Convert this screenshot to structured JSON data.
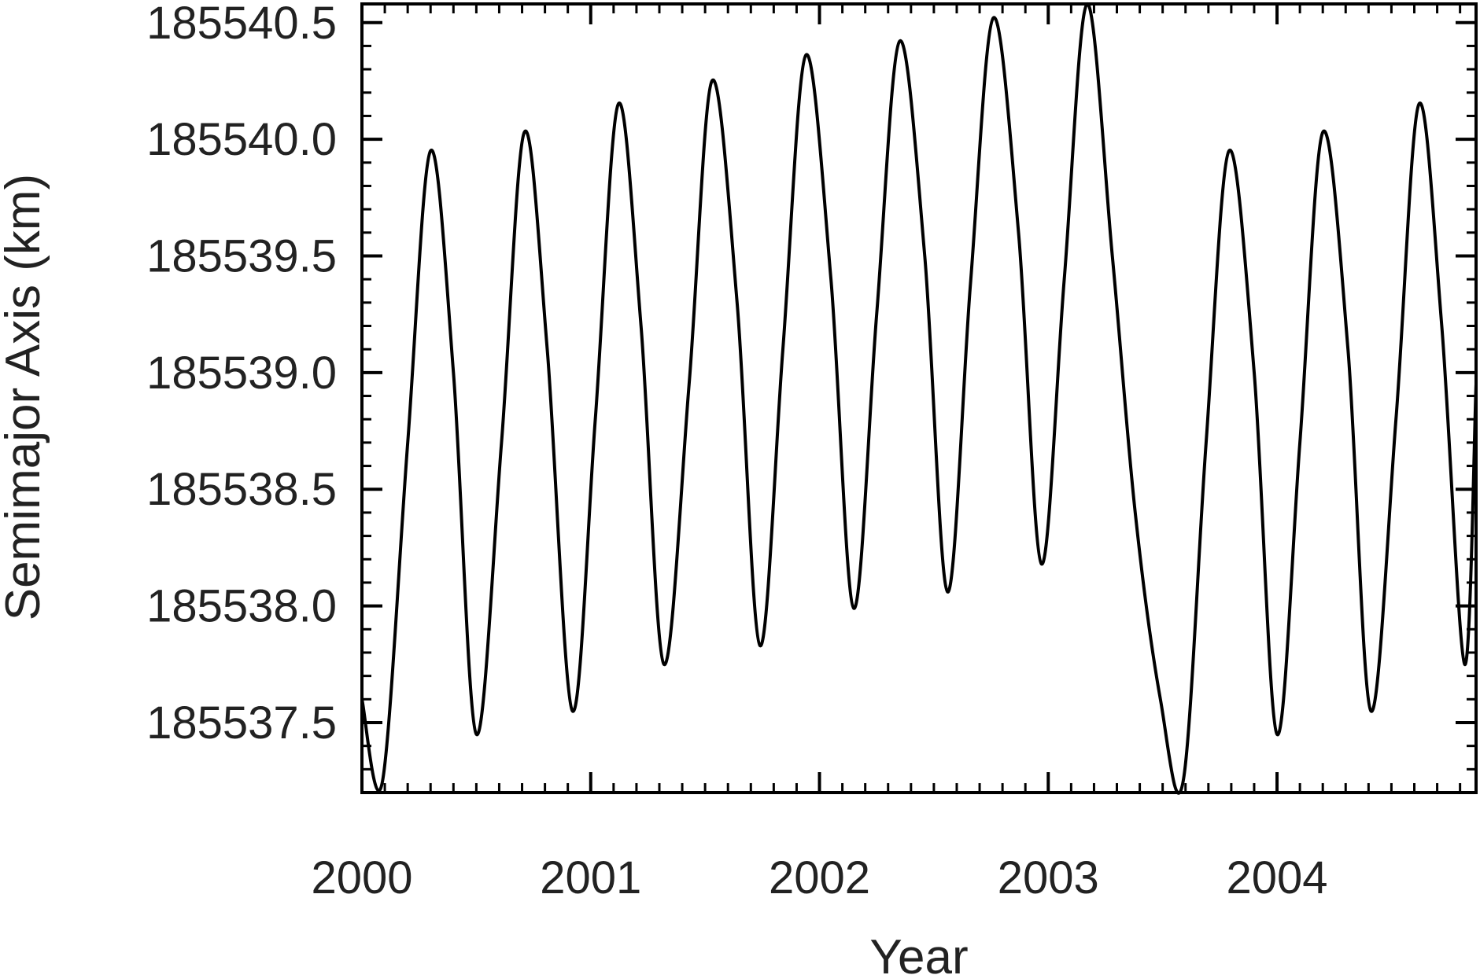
{
  "chart_data": {
    "type": "line",
    "title": "",
    "xlabel": "Year",
    "ylabel": "Semimajor Axis (km)",
    "xlim": [
      2000.0,
      2004.87
    ],
    "ylim": [
      185537.2,
      185540.58
    ],
    "x_ticks": [
      2000,
      2001,
      2002,
      2003,
      2004
    ],
    "x_tick_labels": [
      "2000",
      "2001",
      "2002",
      "2003",
      "2004"
    ],
    "y_ticks": [
      185537.5,
      185538.0,
      185538.5,
      185539.0,
      185539.5,
      185540.0,
      185540.5
    ],
    "y_tick_labels": [
      "185537.5",
      "185538.0",
      "185538.5",
      "185539.0",
      "185539.5",
      "185540.0",
      "185540.5"
    ],
    "grid": false,
    "series": [
      {
        "name": "Semimajor Axis",
        "color": "#000000",
        "x": [
          2000.0,
          2000.09,
          2000.2,
          2000.3,
          2000.4,
          2000.5,
          2000.61,
          2000.71,
          2000.81,
          2000.92,
          2001.02,
          2001.12,
          2001.22,
          2001.32,
          2001.43,
          2001.53,
          2001.64,
          2001.74,
          2001.84,
          2001.94,
          2002.05,
          2002.15,
          2002.25,
          2002.35,
          2002.46,
          2002.56,
          2002.66,
          2002.76,
          2002.87,
          2002.97,
          2003.07,
          2003.17,
          2003.28,
          2003.38,
          2003.49,
          2003.59,
          2003.69,
          2003.79,
          2003.9,
          2004.0,
          2004.1,
          2004.2,
          2004.31,
          2004.41,
          2004.52,
          2004.62,
          2004.72,
          2004.82,
          2004.87
        ],
        "y": [
          185537.6,
          185537.25,
          185538.7,
          185539.95,
          185539.0,
          185537.45,
          185538.7,
          185540.03,
          185539.1,
          185537.55,
          185538.8,
          185540.15,
          185539.2,
          185537.75,
          185538.95,
          185540.25,
          185539.3,
          185537.83,
          185539.1,
          185540.36,
          185539.4,
          185537.99,
          185539.25,
          185540.42,
          185539.5,
          185538.06,
          185539.38,
          185540.52,
          185539.6,
          185538.18,
          185539.4,
          185540.58,
          185539.5,
          185538.4,
          185537.6,
          185537.25,
          185538.7,
          185539.95,
          185539.0,
          185537.45,
          185538.7,
          185540.03,
          185539.1,
          185537.55,
          185538.8,
          185540.15,
          185539.2,
          185537.75,
          185538.95
        ]
      }
    ]
  }
}
